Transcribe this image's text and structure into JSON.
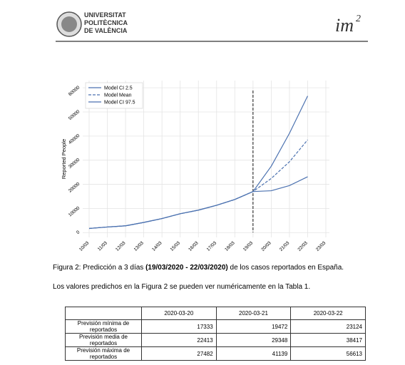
{
  "header": {
    "university": [
      "UNIVERSITAT",
      "POLITÈCNICA",
      "DE VALÈNCIA"
    ],
    "logo_text": "im",
    "logo_sup": "2"
  },
  "chart_data": {
    "type": "line",
    "ylabel": "Reported People",
    "categories": [
      "10/03",
      "11/03",
      "12/03",
      "13/03",
      "14/03",
      "15/03",
      "16/03",
      "17/03",
      "18/03",
      "19/03",
      "20/03",
      "21/03",
      "22/03",
      "23/03"
    ],
    "series": [
      {
        "name": "Model CI 2.5",
        "color": "#4c72b0",
        "dash": false,
        "values": [
          1700,
          2300,
          2800,
          4200,
          5800,
          7800,
          9300,
          11300,
          13700,
          17000,
          17333,
          19472,
          23124,
          null
        ]
      },
      {
        "name": "Model Mean",
        "color": "#4c72b0",
        "dash": true,
        "values": [
          1700,
          2300,
          2800,
          4200,
          5800,
          7800,
          9300,
          11300,
          13700,
          17000,
          22413,
          29348,
          38417,
          null
        ]
      },
      {
        "name": "Model CI 97.5",
        "color": "#4c72b0",
        "dash": false,
        "values": [
          1700,
          2300,
          2800,
          4200,
          5800,
          7800,
          9300,
          11300,
          13700,
          17000,
          27482,
          41139,
          56613,
          null
        ]
      }
    ],
    "ylim": [
      -2000,
      63000
    ],
    "yticks": [
      0,
      10000,
      20000,
      30000,
      40000,
      50000,
      60000
    ],
    "grid": true,
    "legend": "upper left"
  },
  "caption": [
    "Figura 2: Predicción a 3 días",
    "(19/03/2020 - 22/03/2020)",
    "de los casos reportados en España."
  ],
  "text": "Los valores predichos en la Figura 2 se pueden ver numéricamente en la Tabla 1.",
  "table": {
    "columns": [
      "2020-03-20",
      "2020-03-21",
      "2020-03-22"
    ],
    "rows": [
      [
        "Previsión mínima de reportados",
        17333,
        19472,
        23124
      ],
      [
        "Previsión media de reportados",
        22413,
        29348,
        38417
      ],
      [
        "Previsión máxima de reportados",
        27482,
        41139,
        56613
      ]
    ]
  }
}
